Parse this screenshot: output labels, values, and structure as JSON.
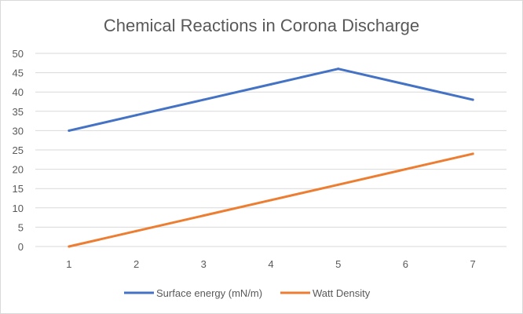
{
  "chart_data": {
    "type": "line",
    "title": "Chemical Reactions in Corona Discharge",
    "categories": [
      "1",
      "2",
      "3",
      "4",
      "5",
      "6",
      "7"
    ],
    "series": [
      {
        "name": "Surface energy (mN/m)",
        "values": [
          30,
          34,
          38,
          42,
          46,
          42,
          38
        ],
        "color": "#4472c4"
      },
      {
        "name": "Watt Density",
        "values": [
          0,
          4,
          8,
          12,
          16,
          20,
          24
        ],
        "color": "#ed7d31"
      }
    ],
    "ylim": [
      0,
      50
    ],
    "yticks": [
      0,
      5,
      10,
      15,
      20,
      25,
      30,
      35,
      40,
      45,
      50
    ],
    "grid": true,
    "legend": "bottom",
    "xlabel": "",
    "ylabel": ""
  }
}
